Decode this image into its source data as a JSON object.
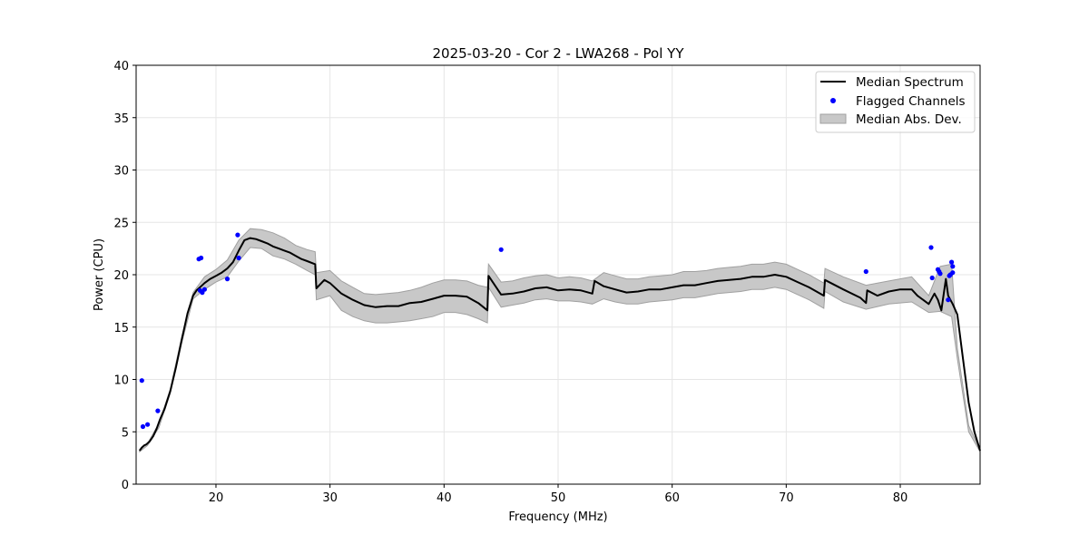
{
  "chart_data": {
    "type": "line",
    "title": "2025-03-20 - Cor 2 - LWA268 - Pol YY",
    "xlabel": "Frequency (MHz)",
    "ylabel": "Power (CPU)",
    "xlim": [
      13,
      87
    ],
    "ylim": [
      0,
      40
    ],
    "xticks": [
      20,
      30,
      40,
      50,
      60,
      70,
      80
    ],
    "yticks": [
      0,
      5,
      10,
      15,
      20,
      25,
      30,
      35,
      40
    ],
    "grid": true,
    "legend_position": "top-right",
    "colors": {
      "median": "#000000",
      "flagged": "#0000ff",
      "mad_fill": "#c8c8c8",
      "mad_edge": "#a0a0a0"
    },
    "series": [
      {
        "name": "Median Spectrum",
        "kind": "line",
        "x": [
          13.3,
          13.5,
          13.7,
          13.9,
          14.2,
          14.5,
          14.8,
          15.1,
          15.5,
          16.0,
          16.5,
          17.0,
          17.5,
          18.0,
          18.3,
          18.6,
          19.0,
          19.5,
          20.0,
          20.5,
          21.0,
          21.5,
          22.0,
          22.5,
          23.0,
          23.5,
          24.0,
          24.5,
          25.0,
          25.5,
          26.0,
          26.5,
          27.0,
          27.5,
          28.0,
          28.7,
          28.8,
          29.5,
          30.0,
          31.0,
          32.0,
          33.0,
          34.0,
          35.0,
          36.0,
          37.0,
          38.0,
          39.0,
          40.0,
          41.0,
          42.0,
          42.5,
          43.0,
          43.8,
          43.9,
          45.0,
          46.0,
          47.0,
          48.0,
          49.0,
          50.0,
          51.0,
          52.0,
          53.0,
          53.2,
          54.0,
          55.0,
          56.0,
          57.0,
          58.0,
          59.0,
          60.0,
          61.0,
          62.0,
          63.0,
          64.0,
          65.0,
          66.0,
          67.0,
          68.0,
          69.0,
          70.0,
          71.0,
          72.0,
          73.3,
          73.4,
          75.0,
          76.5,
          77.0,
          77.1,
          78.0,
          79.0,
          80.0,
          81.0,
          81.5,
          82.0,
          82.5,
          83.0,
          83.3,
          83.6,
          84.0,
          84.2,
          84.6,
          85.0,
          85.5,
          86.0,
          86.5,
          87.0
        ],
        "y": [
          3.2,
          3.5,
          3.7,
          3.8,
          4.1,
          4.6,
          5.3,
          6.2,
          7.2,
          8.9,
          11.2,
          13.8,
          16.3,
          18.0,
          18.5,
          18.8,
          19.2,
          19.6,
          19.9,
          20.2,
          20.6,
          21.2,
          22.3,
          23.3,
          23.5,
          23.4,
          23.2,
          23.0,
          22.7,
          22.5,
          22.3,
          22.1,
          21.8,
          21.5,
          21.3,
          21.0,
          18.7,
          19.5,
          19.2,
          18.2,
          17.6,
          17.1,
          16.9,
          17.0,
          17.0,
          17.3,
          17.4,
          17.7,
          18.0,
          18.0,
          17.9,
          17.6,
          17.3,
          16.6,
          19.9,
          18.1,
          18.2,
          18.4,
          18.7,
          18.8,
          18.5,
          18.6,
          18.5,
          18.2,
          19.4,
          18.9,
          18.6,
          18.3,
          18.4,
          18.6,
          18.6,
          18.8,
          19.0,
          19.0,
          19.2,
          19.4,
          19.5,
          19.6,
          19.8,
          19.8,
          20.0,
          19.8,
          19.3,
          18.8,
          18.0,
          19.5,
          18.6,
          17.8,
          17.3,
          18.5,
          18.0,
          18.4,
          18.6,
          18.6,
          18.0,
          17.6,
          17.2,
          18.2,
          17.6,
          16.6,
          19.6,
          18.0,
          17.2,
          16.2,
          12.0,
          7.8,
          5.0,
          3.2
        ]
      },
      {
        "name": "Flagged Channels",
        "kind": "scatter",
        "x": [
          13.5,
          13.6,
          14.0,
          14.9,
          18.5,
          18.7,
          18.6,
          18.8,
          19.0,
          21.0,
          21.9,
          22.0,
          45.0,
          77.0,
          82.7,
          82.8,
          83.3,
          83.4,
          83.5,
          84.2,
          84.3,
          84.4,
          84.5,
          84.6,
          84.6
        ],
        "y": [
          9.9,
          5.5,
          5.7,
          7.0,
          21.5,
          21.6,
          18.5,
          18.3,
          18.6,
          19.6,
          23.8,
          21.6,
          22.4,
          20.3,
          22.6,
          19.7,
          20.5,
          20.3,
          20.1,
          17.6,
          19.9,
          20.0,
          21.2,
          20.8,
          20.2
        ]
      },
      {
        "name": "Median Abs. Dev.",
        "kind": "band",
        "x": [
          13.3,
          14.0,
          15.0,
          16.0,
          17.0,
          18.0,
          19.0,
          20.0,
          21.0,
          22.0,
          23.0,
          24.0,
          25.0,
          26.0,
          27.0,
          28.0,
          28.7,
          28.8,
          30.0,
          31.0,
          32.0,
          33.0,
          34.0,
          35.0,
          36.0,
          37.0,
          38.0,
          39.0,
          40.0,
          41.0,
          42.0,
          43.0,
          43.8,
          43.9,
          45.0,
          46.0,
          47.0,
          48.0,
          49.0,
          50.0,
          51.0,
          52.0,
          53.0,
          54.0,
          55.0,
          56.0,
          57.0,
          58.0,
          59.0,
          60.0,
          61.0,
          62.0,
          63.0,
          64.0,
          65.0,
          66.0,
          67.0,
          68.0,
          69.0,
          70.0,
          71.0,
          72.0,
          73.3,
          73.4,
          75.0,
          77.0,
          79.0,
          81.0,
          82.5,
          83.5,
          84.5,
          85.0,
          86.0,
          87.0
        ],
        "lower": [
          3.1,
          3.7,
          5.4,
          8.7,
          13.5,
          17.7,
          18.6,
          19.3,
          19.8,
          21.3,
          22.6,
          22.5,
          21.8,
          21.5,
          21.0,
          20.4,
          20.0,
          17.6,
          18.0,
          16.6,
          16.0,
          15.6,
          15.4,
          15.4,
          15.5,
          15.6,
          15.8,
          16.0,
          16.4,
          16.4,
          16.2,
          15.8,
          15.4,
          18.8,
          16.9,
          17.1,
          17.3,
          17.6,
          17.7,
          17.5,
          17.5,
          17.4,
          17.2,
          17.7,
          17.4,
          17.2,
          17.2,
          17.4,
          17.5,
          17.6,
          17.8,
          17.8,
          18.0,
          18.2,
          18.3,
          18.4,
          18.6,
          18.6,
          18.8,
          18.6,
          18.1,
          17.6,
          16.8,
          18.4,
          17.4,
          16.7,
          17.2,
          17.4,
          16.4,
          16.5,
          16.0,
          12.0,
          5.0,
          3.1
        ],
        "upper": [
          3.3,
          3.9,
          5.8,
          9.1,
          14.1,
          18.3,
          19.8,
          20.5,
          21.4,
          23.3,
          24.4,
          24.3,
          24.0,
          23.5,
          22.8,
          22.4,
          22.2,
          20.2,
          20.4,
          19.4,
          18.8,
          18.2,
          18.1,
          18.2,
          18.3,
          18.5,
          18.8,
          19.2,
          19.5,
          19.5,
          19.4,
          19.0,
          18.8,
          21.0,
          19.3,
          19.4,
          19.7,
          19.9,
          20.0,
          19.7,
          19.8,
          19.7,
          19.4,
          20.2,
          19.9,
          19.6,
          19.6,
          19.8,
          19.9,
          20.0,
          20.3,
          20.3,
          20.4,
          20.6,
          20.7,
          20.8,
          21.0,
          21.0,
          21.2,
          21.0,
          20.5,
          20.0,
          19.2,
          20.6,
          19.8,
          19.0,
          19.4,
          19.8,
          18.0,
          20.8,
          21.0,
          13.0,
          5.6,
          3.3
        ]
      }
    ]
  }
}
